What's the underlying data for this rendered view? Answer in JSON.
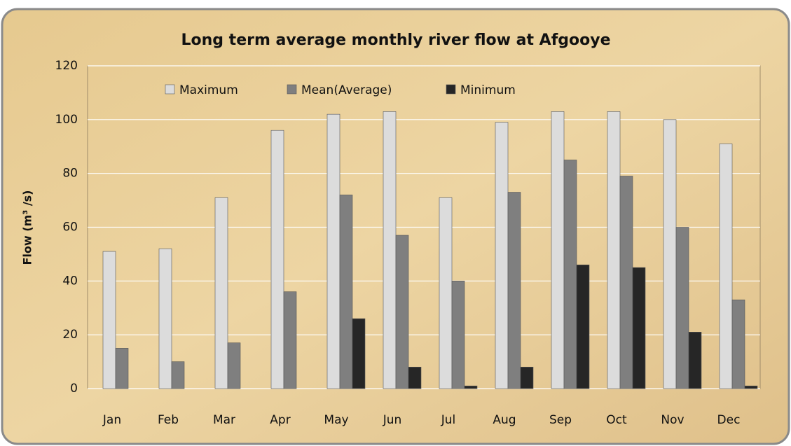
{
  "chart_data": {
    "type": "bar",
    "title": "Long term average monthly river flow at Afgooye",
    "y_label": "Flow (m³ /s)",
    "categories": [
      "Jan",
      "Feb",
      "Mar",
      "Apr",
      "May",
      "Jun",
      "Jul",
      "Aug",
      "Sep",
      "Oct",
      "Nov",
      "Dec"
    ],
    "series": [
      {
        "name": "Maximum",
        "color": "#dcdcdc",
        "values": [
          51,
          52,
          71,
          96,
          102,
          103,
          71,
          99,
          103,
          103,
          100,
          91
        ]
      },
      {
        "name": "Mean(Average)",
        "color": "#7f7f7f",
        "values": [
          15,
          10,
          17,
          36,
          72,
          57,
          40,
          73,
          85,
          79,
          60,
          33
        ]
      },
      {
        "name": "Minimum",
        "color": "#262626",
        "values": [
          0,
          0,
          0,
          0,
          26,
          8,
          1,
          8,
          46,
          45,
          21,
          1
        ]
      }
    ],
    "ylim": [
      0,
      120
    ],
    "yticks": [
      0,
      20,
      40,
      60,
      80,
      100,
      120
    ],
    "grid": true,
    "legend": "top"
  }
}
